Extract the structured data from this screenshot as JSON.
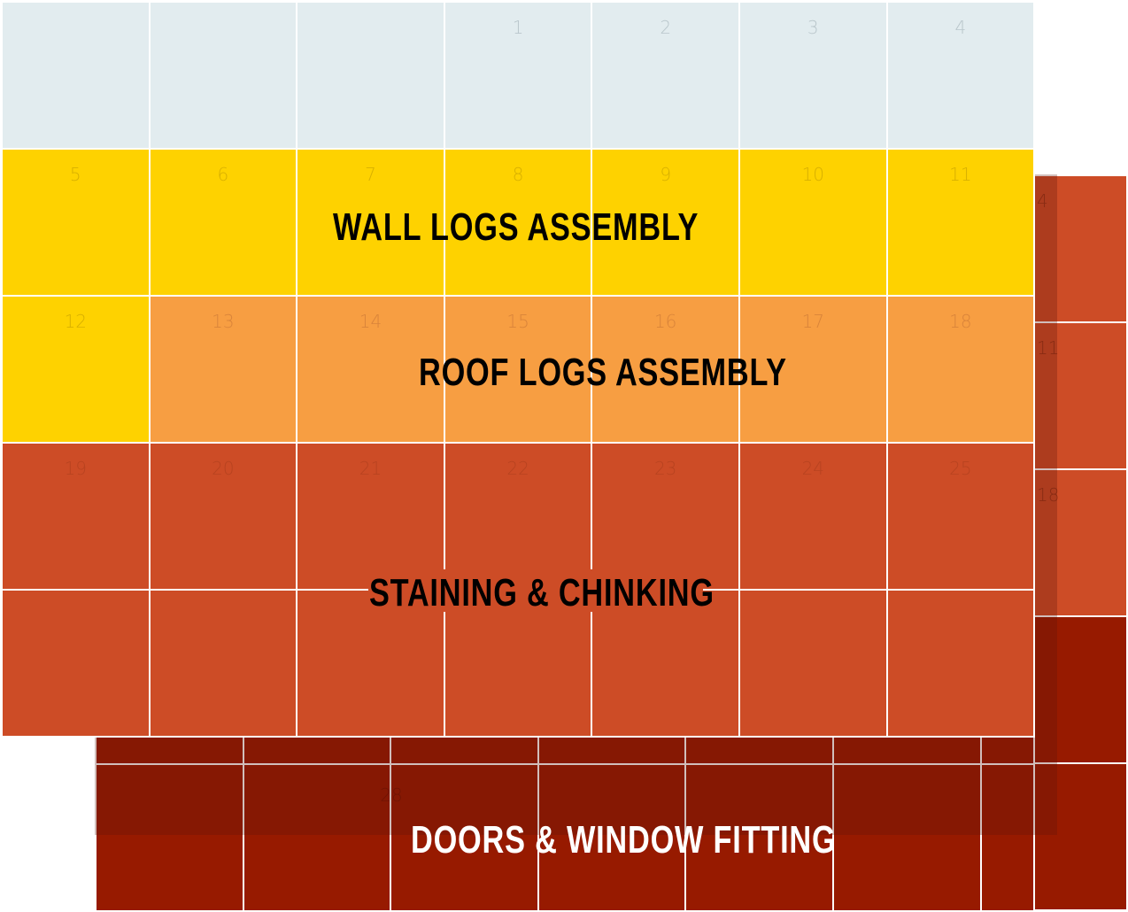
{
  "colors": {
    "empty": "#e2ecef",
    "wall_logs": "#fed200",
    "roof_logs": "#f79e42",
    "staining": "#cd4c26",
    "doors_windows": "#971a00",
    "doors_windows_shadow": "#8a1500",
    "back_sheet": "#cd4c26"
  },
  "phases": [
    {
      "id": "wall_logs",
      "label": "WALL LOGS ASSEMBLY",
      "label_color": "#000000"
    },
    {
      "id": "roof_logs",
      "label": "ROOF LOGS ASSEMBLY",
      "label_color": "#000000"
    },
    {
      "id": "staining",
      "label": "STAINING & CHINKING",
      "label_color": "#000000"
    },
    {
      "id": "doors_windows",
      "label": "DOORS & WINDOW FITTING",
      "label_color": "#ffffff"
    }
  ],
  "front_calendar": {
    "rows": [
      [
        {
          "day": "",
          "phase": "empty"
        },
        {
          "day": "",
          "phase": "empty"
        },
        {
          "day": "",
          "phase": "empty"
        },
        {
          "day": "1",
          "phase": "empty"
        },
        {
          "day": "2",
          "phase": "empty"
        },
        {
          "day": "3",
          "phase": "empty"
        },
        {
          "day": "4",
          "phase": "empty"
        }
      ],
      [
        {
          "day": "5",
          "phase": "wall_logs"
        },
        {
          "day": "6",
          "phase": "wall_logs"
        },
        {
          "day": "7",
          "phase": "wall_logs"
        },
        {
          "day": "8",
          "phase": "wall_logs"
        },
        {
          "day": "9",
          "phase": "wall_logs"
        },
        {
          "day": "10",
          "phase": "wall_logs"
        },
        {
          "day": "11",
          "phase": "wall_logs"
        }
      ],
      [
        {
          "day": "12",
          "phase": "wall_logs"
        },
        {
          "day": "13",
          "phase": "roof_logs"
        },
        {
          "day": "14",
          "phase": "roof_logs"
        },
        {
          "day": "15",
          "phase": "roof_logs"
        },
        {
          "day": "16",
          "phase": "roof_logs"
        },
        {
          "day": "17",
          "phase": "roof_logs"
        },
        {
          "day": "18",
          "phase": "roof_logs"
        }
      ],
      [
        {
          "day": "19",
          "phase": "staining"
        },
        {
          "day": "20",
          "phase": "staining"
        },
        {
          "day": "21",
          "phase": "staining"
        },
        {
          "day": "22",
          "phase": "staining"
        },
        {
          "day": "23",
          "phase": "staining"
        },
        {
          "day": "24",
          "phase": "staining"
        },
        {
          "day": "25",
          "phase": "staining"
        }
      ],
      [
        {
          "day": "",
          "phase": "staining"
        },
        {
          "day": "",
          "phase": "staining"
        },
        {
          "day": "",
          "phase": "staining"
        },
        {
          "day": "",
          "phase": "staining"
        },
        {
          "day": "",
          "phase": "staining"
        },
        {
          "day": "",
          "phase": "staining"
        },
        {
          "day": "",
          "phase": "staining"
        }
      ]
    ]
  },
  "back_calendar": {
    "days": [
      "4",
      "11",
      "18"
    ]
  },
  "bottom_calendar": {
    "days": [
      "28"
    ]
  }
}
